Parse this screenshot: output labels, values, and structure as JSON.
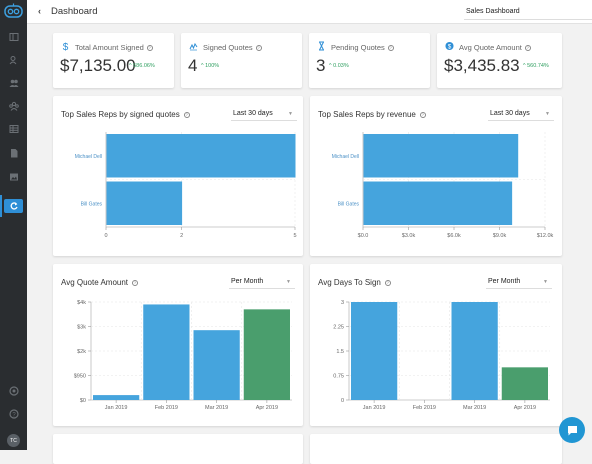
{
  "topbar": {
    "title": "Dashboard",
    "dashboard_select": "Sales Dashboard"
  },
  "sidebar": {
    "items": [
      {
        "icon": "dashboard-icon",
        "active": false
      },
      {
        "icon": "contacts-icon",
        "active": false
      },
      {
        "icon": "users-icon",
        "active": false
      },
      {
        "icon": "groups-icon",
        "active": false
      },
      {
        "icon": "table-icon",
        "active": false
      },
      {
        "icon": "document-icon",
        "active": false
      },
      {
        "icon": "image-icon",
        "active": false
      },
      {
        "icon": "refresh-icon",
        "active": true
      }
    ],
    "bottom": [
      {
        "icon": "settings-icon"
      },
      {
        "icon": "help-icon"
      }
    ],
    "avatar_initials": "TC"
  },
  "stats": [
    {
      "label": "Total Amount Signed",
      "value": "$7,135.00",
      "change": "586.06%",
      "icon": "dollar-icon"
    },
    {
      "label": "Signed Quotes",
      "value": "4",
      "change": "100%",
      "icon": "signature-icon"
    },
    {
      "label": "Pending Quotes",
      "value": "3",
      "change": "0.03%",
      "icon": "hourglass-icon"
    },
    {
      "label": "Avg Quote Amount",
      "value": "$3,435.83",
      "change": "560.74%",
      "icon": "dollar-circle-icon"
    }
  ],
  "colors": {
    "blue": "#45a4dd",
    "green": "#4a9e6d",
    "accent": "#2f8fd6",
    "up": "#2e9e5f"
  },
  "chart_data": [
    {
      "type": "bar",
      "orientation": "horizontal",
      "title": "Top Sales Reps by signed quotes",
      "period": "Last 30 days",
      "categories": [
        "Michael Dell",
        "Bill Gates"
      ],
      "values": [
        5,
        2
      ],
      "xlim": [
        0,
        5
      ],
      "xticks": [
        "0",
        "2",
        "5"
      ],
      "grid": true
    },
    {
      "type": "bar",
      "orientation": "horizontal",
      "title": "Top Sales Reps by revenue",
      "period": "Last 30 days",
      "categories": [
        "Michael Dell",
        "Bill Gates"
      ],
      "values": [
        10200,
        9800
      ],
      "xlim": [
        0,
        12000
      ],
      "xticks": [
        "$0.0",
        "$3.0k",
        "$6.0k",
        "$9.0k",
        "$12.0k"
      ],
      "grid": true
    },
    {
      "type": "bar",
      "title": "Avg Quote Amount",
      "period": "Per Month",
      "categories": [
        "Jan 2019",
        "Feb 2019",
        "Mar 2019",
        "Apr 2019"
      ],
      "values": [
        200,
        3900,
        2850,
        3700
      ],
      "highlight_last": true,
      "ylim": [
        0,
        4000
      ],
      "yticks": [
        "$0",
        "$950",
        "$2k",
        "$3k",
        "$4k"
      ],
      "grid": true
    },
    {
      "type": "bar",
      "title": "Avg Days To Sign",
      "period": "Per Month",
      "categories": [
        "Jan 2019",
        "Feb 2019",
        "Mar 2019",
        "Apr 2019"
      ],
      "values": [
        3,
        0,
        3,
        1
      ],
      "highlight_last": true,
      "ylim": [
        0,
        3
      ],
      "yticks": [
        "0",
        "0.75",
        "1.5",
        "2.25",
        "3"
      ],
      "grid": true
    }
  ]
}
